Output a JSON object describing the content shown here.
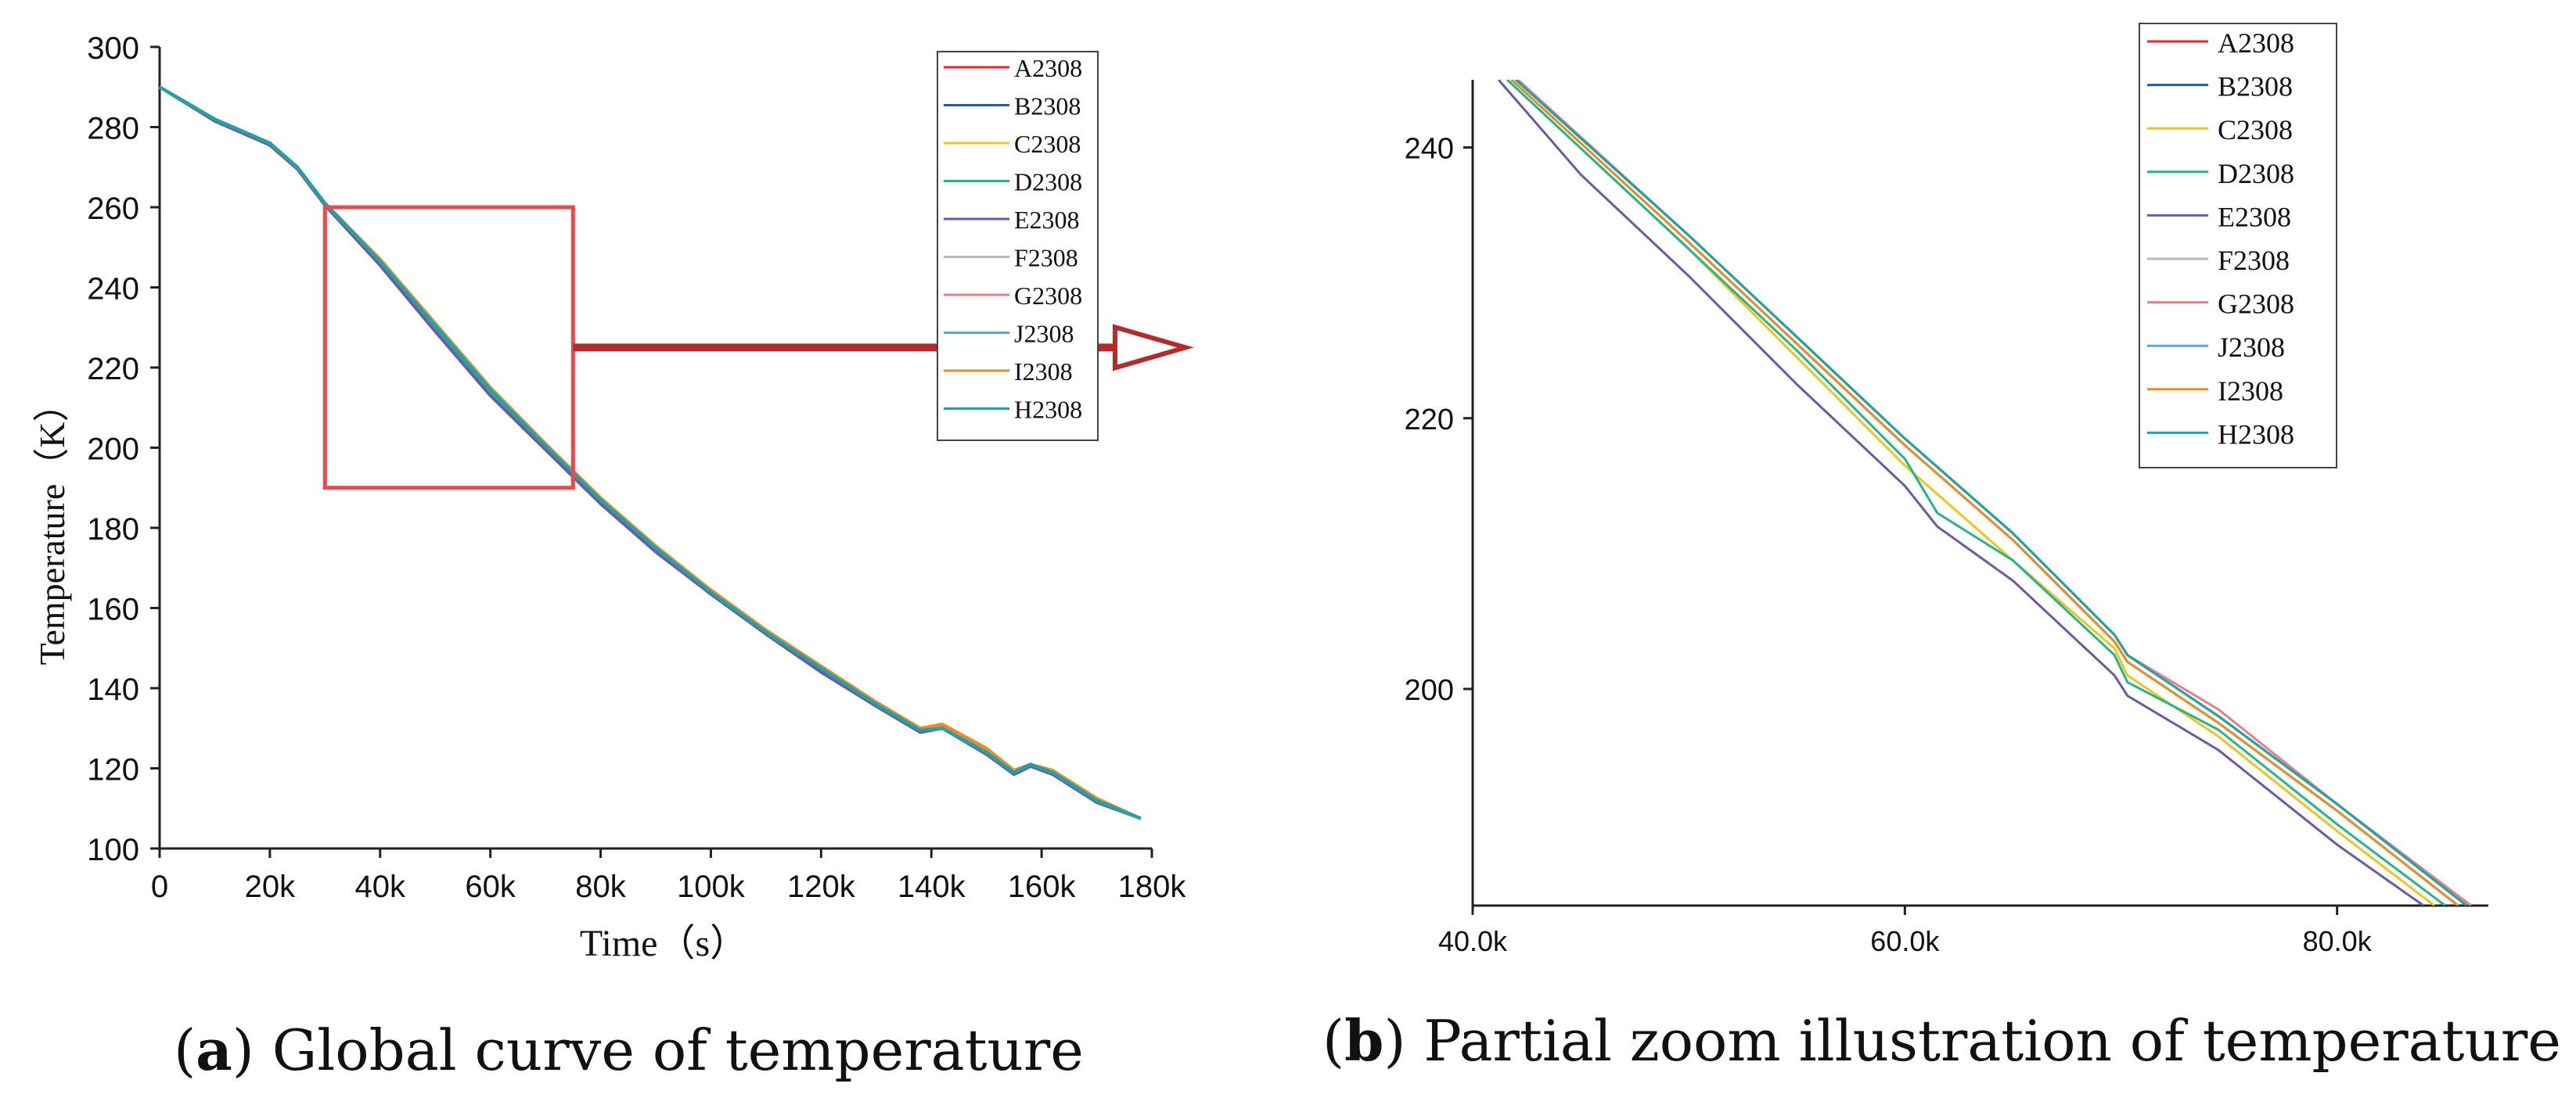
{
  "chart_data": [
    {
      "panel": "a",
      "type": "line",
      "title": "",
      "xlabel": "Time（s）",
      "ylabel": "Temperature（K）",
      "xlim": [
        0,
        180000
      ],
      "ylim": [
        100,
        300
      ],
      "x_ticks": [
        0,
        20000,
        40000,
        60000,
        80000,
        100000,
        120000,
        140000,
        160000,
        180000
      ],
      "x_tick_labels": [
        "0",
        "20k",
        "40k",
        "60k",
        "80k",
        "100k",
        "120k",
        "140k",
        "160k",
        "180k"
      ],
      "y_ticks": [
        100,
        120,
        140,
        160,
        180,
        200,
        220,
        240,
        260,
        280,
        300
      ],
      "y_tick_labels": [
        "100",
        "120",
        "140",
        "160",
        "180",
        "200",
        "220",
        "240",
        "260",
        "280",
        "300"
      ],
      "legend": "top-right",
      "zoom_box": {
        "x_range": [
          30000,
          75000
        ],
        "y_range": [
          190,
          260
        ]
      },
      "x": [
        0,
        10000,
        20000,
        25000,
        30000,
        40000,
        50000,
        60000,
        70000,
        80000,
        90000,
        100000,
        110000,
        120000,
        130000,
        138000,
        142000,
        150000,
        155000,
        158000,
        162000,
        170000,
        178000
      ],
      "series": [
        {
          "name": "A2308",
          "values": [
            290,
            282,
            276,
            270,
            261,
            247,
            231,
            215,
            201,
            187,
            175,
            164,
            154,
            145,
            136,
            129.5,
            130,
            124,
            119,
            121,
            119,
            112,
            107.5
          ]
        },
        {
          "name": "B2308",
          "values": [
            290,
            282,
            276,
            270,
            261,
            247,
            230.5,
            214,
            200.5,
            187,
            175,
            164,
            154,
            145,
            136,
            129.5,
            130,
            124,
            119,
            121,
            119,
            112,
            107.5
          ]
        },
        {
          "name": "C2308",
          "values": [
            290,
            282,
            276,
            270,
            261,
            246.5,
            230,
            214,
            200,
            186.5,
            174.5,
            164,
            154,
            145,
            136,
            129.5,
            130.5,
            124,
            119,
            121,
            119,
            112,
            107.5
          ]
        },
        {
          "name": "D2308",
          "values": [
            290,
            282,
            276,
            270,
            261,
            246.5,
            230,
            213.5,
            200,
            186.5,
            174.5,
            163.5,
            153.5,
            144.5,
            135.5,
            129,
            130,
            124,
            118.5,
            120.5,
            119,
            112,
            107.5
          ]
        },
        {
          "name": "E2308",
          "values": [
            290,
            281.5,
            275.5,
            269.5,
            260.5,
            245.5,
            229,
            213,
            199.5,
            186,
            174,
            163.5,
            153.5,
            144,
            135.5,
            129,
            130,
            123.5,
            118.5,
            120.5,
            118.5,
            111.5,
            107.5
          ]
        },
        {
          "name": "F2308",
          "values": [
            290,
            282,
            276,
            270,
            261,
            247,
            231,
            215,
            201,
            187,
            175,
            164,
            154,
            145,
            136,
            129.5,
            130.5,
            124,
            119,
            121,
            119,
            112,
            107.5
          ]
        },
        {
          "name": "G2308",
          "values": [
            290,
            282,
            276,
            270,
            261,
            247,
            231,
            215,
            201,
            187,
            175,
            164.5,
            154.5,
            145.5,
            136.5,
            130,
            130.5,
            124.5,
            119.5,
            121,
            119,
            112,
            107.5
          ]
        },
        {
          "name": "J2308",
          "values": [
            290,
            282,
            276,
            270,
            261,
            246.5,
            230.5,
            214.5,
            200.5,
            187,
            175,
            164,
            154,
            145,
            136,
            129.5,
            130,
            124,
            119,
            121,
            119,
            112,
            107.5
          ]
        },
        {
          "name": "I2308",
          "values": [
            290,
            282,
            276,
            270,
            261,
            247,
            231,
            215,
            201,
            187.5,
            175.5,
            164.5,
            154.5,
            145.5,
            136.5,
            130,
            131,
            125,
            119.5,
            121,
            119.5,
            112.5,
            107.5
          ]
        },
        {
          "name": "H2308",
          "values": [
            290,
            282,
            276,
            270,
            261,
            246.5,
            230.5,
            214.5,
            200.5,
            187,
            175,
            164,
            154,
            145,
            136,
            129.5,
            130,
            124,
            119,
            121,
            119,
            112,
            107.5
          ]
        }
      ]
    },
    {
      "panel": "b",
      "type": "line",
      "title": "",
      "xlabel": "",
      "ylabel": "",
      "xlim": [
        40000,
        87000
      ],
      "ylim": [
        184,
        245
      ],
      "x_ticks": [
        40000,
        60000,
        80000
      ],
      "x_tick_labels": [
        "40.0k",
        "60.0k",
        "80.0k"
      ],
      "y_ticks": [
        200,
        220,
        240
      ],
      "y_tick_labels": [
        "200",
        "220",
        "240"
      ],
      "legend": "top-right",
      "series": [
        {
          "name": "A2308",
          "points": [
            [
              42000,
              245
            ],
            [
              50000,
              233.5
            ],
            [
              55000,
              226
            ],
            [
              60000,
              218.5
            ],
            [
              65000,
              211.5
            ],
            [
              69700,
              204
            ],
            [
              70300,
              202.5
            ],
            [
              74500,
              198
            ],
            [
              80000,
              191.5
            ],
            [
              86000,
              184
            ]
          ]
        },
        {
          "name": "B2308",
          "points": [
            [
              42000,
              245
            ],
            [
              50000,
              233.5
            ],
            [
              55000,
              226
            ],
            [
              60000,
              218.5
            ],
            [
              65000,
              211.5
            ],
            [
              69700,
              204
            ],
            [
              70300,
              202.5
            ],
            [
              74500,
              198
            ],
            [
              80000,
              191.5
            ],
            [
              86000,
              184
            ]
          ]
        },
        {
          "name": "C2308",
          "points": [
            [
              41600,
              245
            ],
            [
              50000,
              232.5
            ],
            [
              55000,
              224.5
            ],
            [
              60000,
              216.5
            ],
            [
              65000,
              209.5
            ],
            [
              69700,
              203
            ],
            [
              70300,
              201
            ],
            [
              74500,
              196.5
            ],
            [
              80000,
              189.5
            ],
            [
              84500,
              184
            ]
          ]
        },
        {
          "name": "D2308",
          "points": [
            [
              41600,
              245
            ],
            [
              50000,
              232.5
            ],
            [
              55000,
              225
            ],
            [
              60000,
              217
            ],
            [
              61500,
              213
            ],
            [
              65000,
              209.5
            ],
            [
              69700,
              202.5
            ],
            [
              70300,
              200.5
            ],
            [
              74500,
              197
            ],
            [
              80000,
              190
            ],
            [
              85000,
              184
            ]
          ]
        },
        {
          "name": "E2308",
          "points": [
            [
              41200,
              245
            ],
            [
              45000,
              238
            ],
            [
              50000,
              230.5
            ],
            [
              55000,
              222.5
            ],
            [
              60000,
              215
            ],
            [
              61500,
              212
            ],
            [
              65000,
              208
            ],
            [
              69700,
              201
            ],
            [
              70300,
              199.5
            ],
            [
              74500,
              195.5
            ],
            [
              80000,
              188.5
            ],
            [
              84000,
              184
            ]
          ]
        },
        {
          "name": "F2308",
          "points": [
            [
              42000,
              245
            ],
            [
              50000,
              233.5
            ],
            [
              55000,
              226
            ],
            [
              60000,
              218.5
            ],
            [
              65000,
              211.5
            ],
            [
              69700,
              204
            ],
            [
              70300,
              202.5
            ],
            [
              74500,
              198
            ],
            [
              80000,
              191.5
            ],
            [
              86000,
              184
            ]
          ]
        },
        {
          "name": "G2308",
          "points": [
            [
              42100,
              245
            ],
            [
              50000,
              233.5
            ],
            [
              55000,
              226
            ],
            [
              60000,
              218.5
            ],
            [
              65000,
              211.5
            ],
            [
              69700,
              204
            ],
            [
              70300,
              202.5
            ],
            [
              74500,
              198.5
            ],
            [
              80000,
              191.5
            ],
            [
              86200,
              184
            ]
          ]
        },
        {
          "name": "J2308",
          "points": [
            [
              41800,
              245
            ],
            [
              50000,
              233
            ],
            [
              55000,
              225.5
            ],
            [
              60000,
              218
            ],
            [
              65000,
              211
            ],
            [
              69700,
              203.5
            ],
            [
              70300,
              202
            ],
            [
              74500,
              197.5
            ],
            [
              80000,
              191
            ],
            [
              85600,
              184
            ]
          ]
        },
        {
          "name": "I2308",
          "points": [
            [
              41800,
              245
            ],
            [
              50000,
              233
            ],
            [
              55000,
              225.5
            ],
            [
              60000,
              218
            ],
            [
              65000,
              211
            ],
            [
              69700,
              203.5
            ],
            [
              70300,
              202
            ],
            [
              74500,
              197.5
            ],
            [
              80000,
              191
            ],
            [
              85600,
              184
            ]
          ]
        },
        {
          "name": "H2308",
          "points": [
            [
              42000,
              245
            ],
            [
              50000,
              233.5
            ],
            [
              55000,
              226
            ],
            [
              60000,
              218.5
            ],
            [
              65000,
              211.5
            ],
            [
              69700,
              204
            ],
            [
              70300,
              202.5
            ],
            [
              74500,
              198
            ],
            [
              80000,
              191.5
            ],
            [
              86000,
              184
            ]
          ]
        }
      ]
    }
  ],
  "colors": {
    "A2308": "#e8262e",
    "B2308": "#1f5ca8",
    "C2308": "#f2c417",
    "D2308": "#1fb88c",
    "E2308": "#6a5aa8",
    "F2308": "#b8b8b8",
    "G2308": "#f07a88",
    "J2308": "#5aa8d8",
    "I2308": "#f08a1c",
    "H2308": "#16a8a8",
    "zoom_box": "#ee4848",
    "arrow": "#b82a2a"
  },
  "captions": {
    "a_letter": "a",
    "a_text": " Global curve of temperature",
    "b_letter": "b",
    "b_text": " Partial zoom illustration of temperature"
  }
}
